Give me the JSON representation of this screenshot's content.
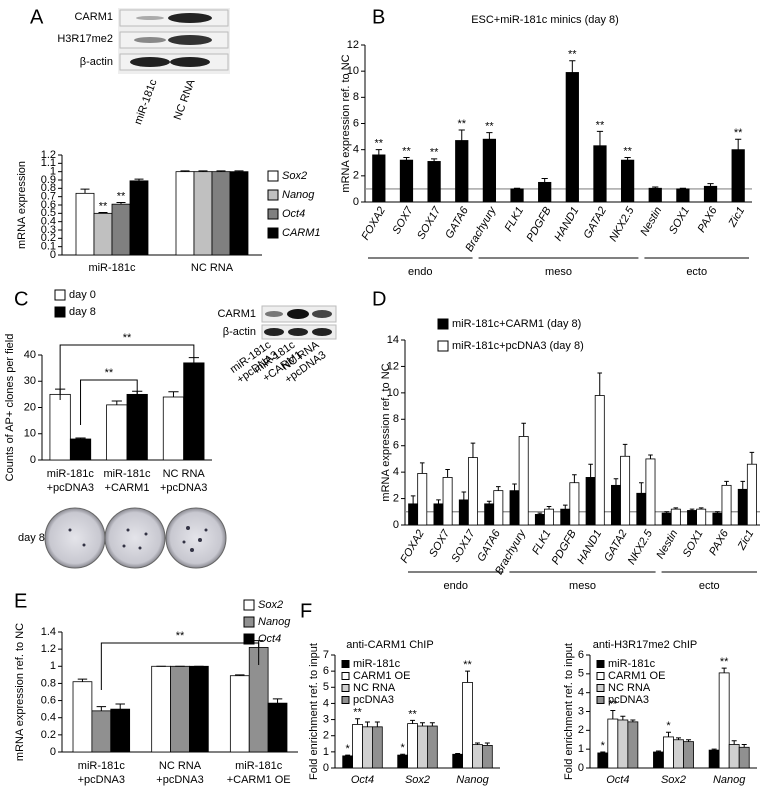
{
  "panel_labels": [
    "A",
    "B",
    "C",
    "D",
    "E",
    "F"
  ],
  "blots": {
    "a": {
      "rows": [
        "CARM1",
        "H3R17me2",
        "β-actin"
      ],
      "lanes": [
        "miR-181c",
        "NC RNA"
      ]
    },
    "c": {
      "rows": [
        "CARM1",
        "β-actin"
      ],
      "lanes": [
        [
          "miR-181c",
          "+pcDNA3"
        ],
        [
          "miR-181c",
          "+CARM1"
        ],
        [
          "NC RNA",
          "+pcDNA3"
        ]
      ]
    }
  },
  "plates_label": "day 8",
  "chart_data": [
    {
      "type": "bar",
      "ylabel": "mRNA expression",
      "categories": [
        "miR-181c",
        "NC RNA"
      ],
      "series": [
        {
          "name": "Sox2",
          "color": "#ffffff",
          "values": [
            0.74,
            1
          ],
          "errors": [
            0.05,
            0.01
          ]
        },
        {
          "name": "Nanog",
          "color": "#c0c0c0",
          "values": [
            0.5,
            1
          ],
          "errors": [
            0.01,
            0.01
          ],
          "sig_labels": [
            "**",
            null
          ]
        },
        {
          "name": "Oct4",
          "color": "#808080",
          "values": [
            0.61,
            1
          ],
          "errors": [
            0.02,
            0.01
          ],
          "sig_labels": [
            "**",
            null
          ]
        },
        {
          "name": "CARM1",
          "color": "#000000",
          "values": [
            0.89,
            1
          ],
          "errors": [
            0.02,
            0.01
          ]
        }
      ],
      "ylim": [
        0,
        1.2
      ],
      "yticks": [
        0,
        0.1,
        0.2,
        0.3,
        0.4,
        0.5,
        0.6,
        0.7,
        0.8,
        0.9,
        1,
        1.1,
        1.2
      ],
      "legend": "right",
      "italic_legend": true
    },
    {
      "type": "bar",
      "title": "ESC+miR-181c minics (day 8)",
      "ylabel": "mRNA expression ref. to NC",
      "categories": [
        "FOXA2",
        "SOX7",
        "SOX17",
        "GATA6",
        "Brachyury",
        "FLK1",
        "PDGFB",
        "HAND1",
        "GATA2",
        "NKX2.5",
        "Nestin",
        "SOX1",
        "PAX6",
        "Zic1"
      ],
      "values": [
        3.6,
        3.2,
        3.1,
        4.7,
        4.8,
        1.0,
        1.5,
        9.9,
        4.3,
        3.2,
        1.05,
        1.0,
        1.2,
        4.0
      ],
      "errors": [
        0.4,
        0.2,
        0.2,
        0.8,
        0.5,
        0.05,
        0.3,
        0.9,
        1.1,
        0.2,
        0.1,
        0.05,
        0.2,
        0.8
      ],
      "sig_labels": [
        "**",
        "**",
        "**",
        "**",
        "**",
        null,
        null,
        "**",
        "**",
        "**",
        null,
        null,
        null,
        "**"
      ],
      "color": "#000000",
      "ylim": [
        0,
        12
      ],
      "yticks": [
        0,
        2,
        4,
        6,
        8,
        10,
        12
      ],
      "reference_line": 1,
      "groups": [
        "endo",
        "meso",
        "ecto"
      ],
      "italic_categories": true
    },
    {
      "type": "bar",
      "ylabel": "Counts of AP+ clones per field",
      "categories": [
        [
          "miR-181c",
          "+pcDNA3"
        ],
        [
          "miR-181c",
          "+CARM1"
        ],
        [
          "NC RNA",
          "+pcDNA3"
        ]
      ],
      "series": [
        {
          "name": "day 0",
          "color": "#ffffff",
          "values": [
            25,
            21,
            24
          ],
          "errors": [
            2,
            1.5,
            2
          ]
        },
        {
          "name": "day 8",
          "color": "#000000",
          "values": [
            8,
            25,
            37
          ],
          "errors": [
            0.4,
            1.2,
            2
          ]
        }
      ],
      "ylim": [
        0,
        40
      ],
      "yticks": [
        0,
        10,
        20,
        30,
        40
      ],
      "annotations": [
        "**",
        "**"
      ],
      "legend": "top-left"
    },
    {
      "type": "bar",
      "ylabel": "mRNA expression ref. to NC",
      "categories": [
        "FOXA2",
        "SOX7",
        "SOX17",
        "GATA6",
        "Brachyury",
        "FLK1",
        "PDGFB",
        "HAND1",
        "GATA2",
        "NKX2.5",
        "Nestin",
        "SOX1",
        "PAX6",
        "Zic1"
      ],
      "series": [
        {
          "name": "miR-181c+CARM1  (day 8)",
          "color": "#000000",
          "values": [
            1.6,
            1.6,
            1.9,
            1.6,
            2.6,
            0.8,
            1.2,
            3.6,
            3.0,
            2.4,
            0.9,
            1.1,
            0.9,
            2.7
          ],
          "errors": [
            0.6,
            0.3,
            0.6,
            0.2,
            0.5,
            0.1,
            0.3,
            1.0,
            0.5,
            0.8,
            0.1,
            0.1,
            0.1,
            0.6
          ]
        },
        {
          "name": "miR-181c+pcDNA3 (day 8)",
          "color": "#ffffff",
          "values": [
            3.9,
            3.6,
            5.1,
            2.6,
            6.7,
            1.2,
            3.2,
            9.8,
            5.2,
            5.0,
            1.2,
            1.2,
            3.0,
            4.6
          ],
          "errors": [
            0.8,
            0.6,
            1.1,
            0.3,
            1.0,
            0.2,
            0.6,
            1.7,
            0.9,
            0.3,
            0.1,
            0.1,
            0.3,
            0.9
          ]
        }
      ],
      "ylim": [
        0,
        14
      ],
      "yticks": [
        0,
        2,
        4,
        6,
        8,
        10,
        12,
        14
      ],
      "reference_line": 1,
      "groups": [
        "endo",
        "meso",
        "ecto"
      ],
      "italic_categories": true,
      "legend": "top-left"
    },
    {
      "type": "bar",
      "ylabel": "mRNA expression ref. to NC",
      "categories": [
        [
          "miR-181c",
          "+pcDNA3"
        ],
        [
          "NC RNA",
          "+pcDNA3"
        ],
        [
          "miR-181c",
          "+CARM1 OE"
        ]
      ],
      "series": [
        {
          "name": "Sox2",
          "color": "#ffffff",
          "values": [
            0.82,
            1,
            0.89
          ],
          "errors": [
            0.03,
            0,
            0.01
          ]
        },
        {
          "name": "Nanog",
          "color": "#909090",
          "values": [
            0.48,
            1,
            1.22
          ],
          "errors": [
            0.05,
            0,
            0.08
          ]
        },
        {
          "name": "Oct4",
          "color": "#000000",
          "values": [
            0.5,
            1,
            0.57
          ],
          "errors": [
            0.06,
            0,
            0.05
          ]
        }
      ],
      "ylim": [
        0,
        1.4
      ],
      "yticks": [
        0,
        0.2,
        0.4,
        0.6,
        0.8,
        1,
        1.2,
        1.4
      ],
      "annotations": [
        "**"
      ],
      "legend": "top-right",
      "italic_legend": true
    },
    {
      "type": "bar",
      "title": "anti-CARM1 ChIP",
      "ylabel": "Fold enrichment ref. to input",
      "categories": [
        "Oct4",
        "Sox2",
        "Nanog"
      ],
      "series": [
        {
          "name": "miR-181c",
          "color": "#000000",
          "values": [
            0.75,
            0.8,
            0.85
          ],
          "errors": [
            0.05,
            0.05,
            0.05
          ],
          "sig_labels": [
            "*",
            "*",
            null
          ]
        },
        {
          "name": "CARM1 OE",
          "color": "#ffffff",
          "values": [
            2.7,
            2.75,
            5.3
          ],
          "errors": [
            0.35,
            0.2,
            0.7
          ],
          "sig_labels": [
            "**",
            "**",
            "**"
          ]
        },
        {
          "name": "NC RNA",
          "color": "#d0d0d0",
          "values": [
            2.55,
            2.6,
            1.45
          ],
          "errors": [
            0.3,
            0.2,
            0.1
          ]
        },
        {
          "name": "pcDNA3",
          "color": "#909090",
          "values": [
            2.55,
            2.6,
            1.4
          ],
          "errors": [
            0.3,
            0.2,
            0.15
          ]
        }
      ],
      "ylim": [
        0,
        7
      ],
      "yticks": [
        0,
        1,
        2,
        3,
        4,
        5,
        6,
        7
      ],
      "italic_categories": true,
      "legend": "top-left"
    },
    {
      "type": "bar",
      "title": "anti-H3R17me2 ChIP",
      "ylabel": "Fold enrichment ref. to input",
      "categories": [
        "Oct4",
        "Sox2",
        "Nanog"
      ],
      "series": [
        {
          "name": "miR-181c",
          "color": "#000000",
          "values": [
            0.8,
            0.85,
            0.95
          ],
          "errors": [
            0.05,
            0.05,
            0.05
          ],
          "sig_labels": [
            "*",
            null,
            null
          ]
        },
        {
          "name": "CARM1 OE",
          "color": "#ffffff",
          "values": [
            2.6,
            1.65,
            5.05
          ],
          "errors": [
            0.45,
            0.25,
            0.25
          ],
          "sig_labels": [
            "**",
            "*",
            "**"
          ]
        },
        {
          "name": "NC RNA",
          "color": "#d0d0d0",
          "values": [
            2.55,
            1.5,
            1.25
          ],
          "errors": [
            0.2,
            0.1,
            0.2
          ]
        },
        {
          "name": "pcDNA3",
          "color": "#909090",
          "values": [
            2.45,
            1.4,
            1.1
          ],
          "errors": [
            0.1,
            0.1,
            0.15
          ]
        }
      ],
      "ylim": [
        0,
        6
      ],
      "yticks": [
        0,
        1,
        2,
        3,
        4,
        5,
        6
      ],
      "italic_categories": true,
      "legend": "top-left"
    }
  ]
}
